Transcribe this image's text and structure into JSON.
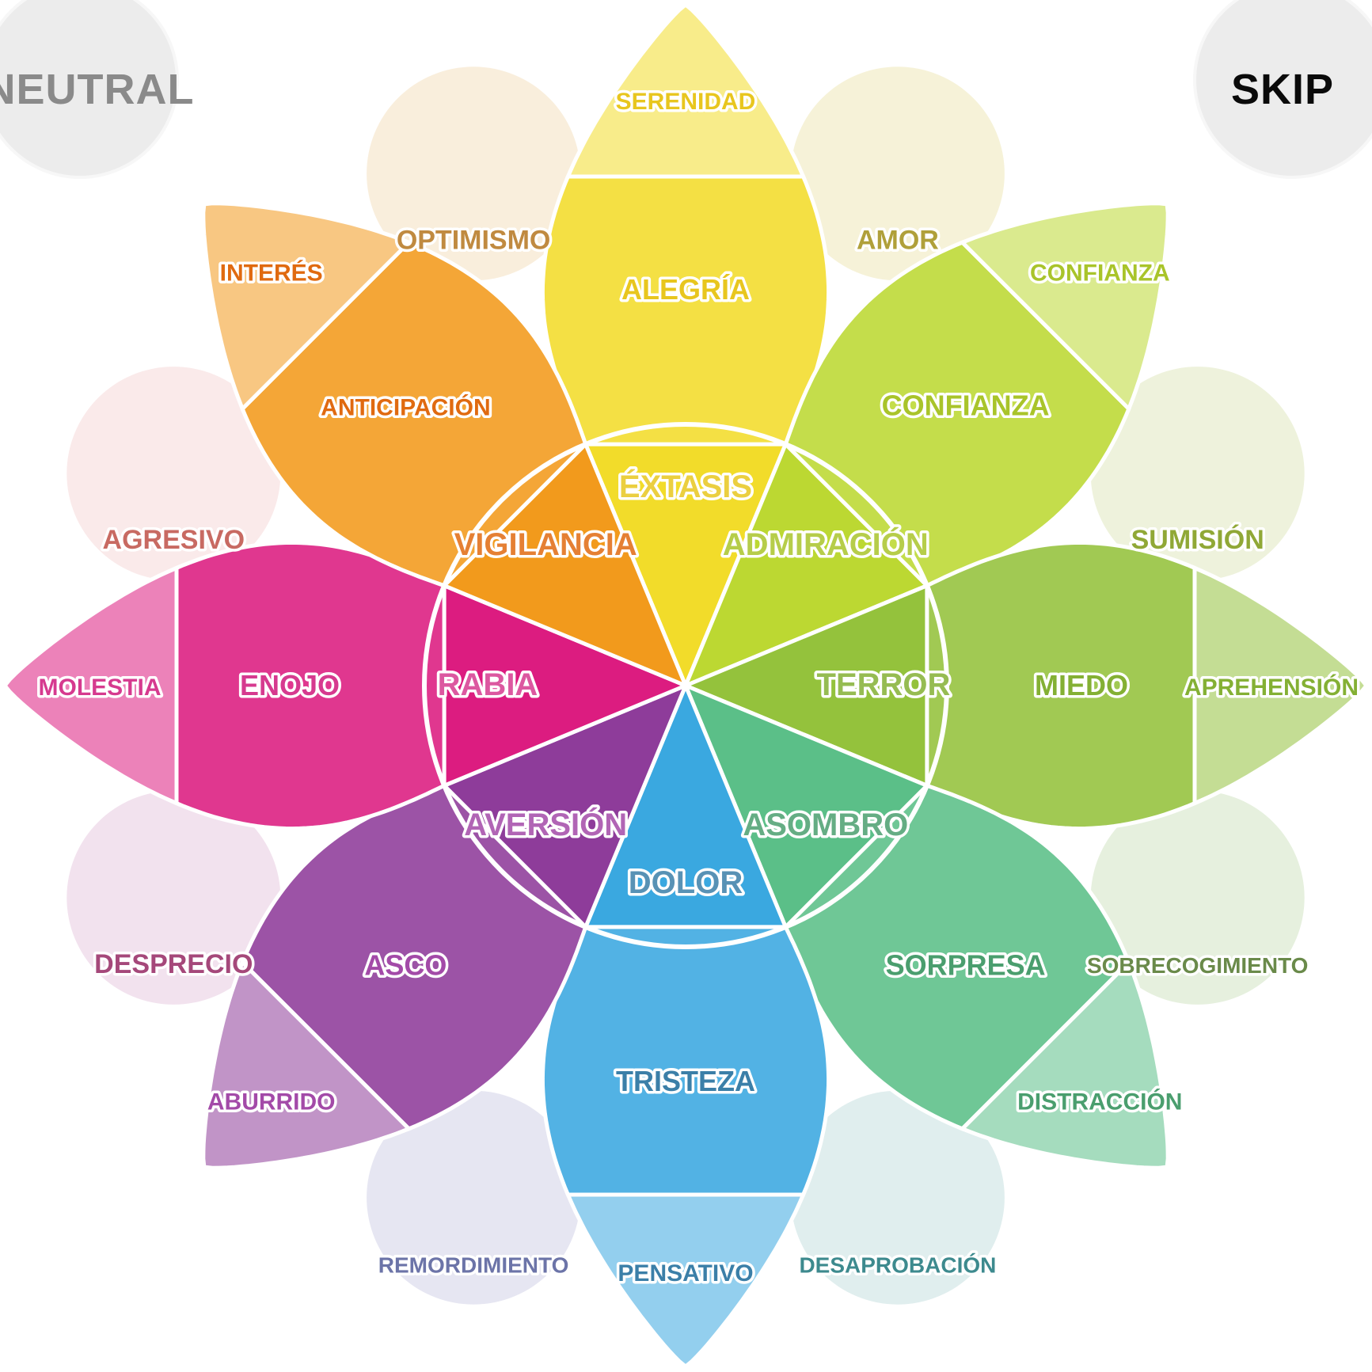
{
  "buttons": {
    "neutral": "NEUTRAL",
    "skip": "SKIP"
  },
  "wheel": {
    "petals": [
      {
        "id": "yellow",
        "color": "#f2dc2a",
        "inner": "ÉXTASIS",
        "middle": "ALEGRÍA",
        "outer": "SERENIDAD",
        "label_color": "#e8c61e"
      },
      {
        "id": "lime",
        "color": "#bcd832",
        "inner": "ADMIRACIÓN",
        "middle": "CONFIANZA",
        "outer": "CONFIANZA",
        "label_color": "#a9c42a"
      },
      {
        "id": "green",
        "color": "#94c23c",
        "inner": "TERROR",
        "middle": "MIEDO",
        "outer": "APREHENSIÓN",
        "label_color": "#84b034"
      },
      {
        "id": "teal",
        "color": "#5bbf88",
        "inner": "ASOMBRO",
        "middle": "SORPRESA",
        "outer": "DISTRACCIÓN",
        "label_color": "#4a9e6e"
      },
      {
        "id": "blue",
        "color": "#3aa8e0",
        "inner": "DOLOR",
        "middle": "TRISTEZA",
        "outer": "PENSATIVO",
        "label_color": "#3b7fa8"
      },
      {
        "id": "purple",
        "color": "#8e3c9a",
        "inner": "AVERSIÓN",
        "middle": "ASCO",
        "outer": "ABURRIDO",
        "label_color": "#a34aa8"
      },
      {
        "id": "magenta",
        "color": "#dc1c80",
        "inner": "RABIA",
        "middle": "ENOJO",
        "outer": "MOLESTIA",
        "label_color": "#d63a8f"
      },
      {
        "id": "orange",
        "color": "#f29a1c",
        "inner": "VIGILANCIA",
        "middle": "ANTICIPACIÓN",
        "outer": "INTERÉS",
        "label_color": "#e06a10"
      }
    ],
    "combinations": [
      {
        "label": "AMOR",
        "color": "#b0a03a",
        "fill": "#f6f2d8"
      },
      {
        "label": "SUMISIÓN",
        "color": "#90a836",
        "fill": "#eef2dc"
      },
      {
        "label": "SOBRECOGIMIENTO",
        "color": "#6a8a4a",
        "fill": "#e6f0de"
      },
      {
        "label": "DESAPROBACIÓN",
        "color": "#3d8a8e",
        "fill": "#e0eeee"
      },
      {
        "label": "REMORDIMIENTO",
        "color": "#6c74a8",
        "fill": "#e6e6f2"
      },
      {
        "label": "DESPRECIO",
        "color": "#a5487a",
        "fill": "#f2e2ee"
      },
      {
        "label": "AGRESIVO",
        "color": "#c86a62",
        "fill": "#faeaea"
      },
      {
        "label": "OPTIMISMO",
        "color": "#c08a40",
        "fill": "#f9eedc"
      }
    ]
  }
}
